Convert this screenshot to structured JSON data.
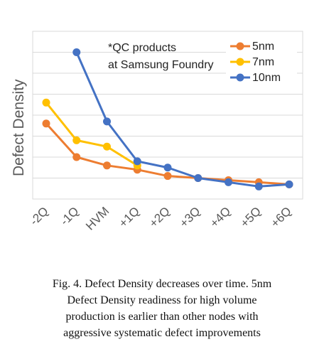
{
  "chart_data": {
    "type": "line",
    "ylabel": "Defect Density",
    "xlabel": "",
    "categories": [
      "-2Q",
      "-1Q",
      "HVM",
      "+1Q",
      "+2Q",
      "+3Q",
      "+4Q",
      "+5Q",
      "+6Q"
    ],
    "ylim": [
      0,
      8
    ],
    "grid": true,
    "legend_position": "top-right",
    "annotation_lines": [
      "*QC products",
      "at Samsung Foundry"
    ],
    "series": [
      {
        "name": "5nm",
        "color": "#ED7D31",
        "values": [
          3.6,
          2.0,
          1.6,
          1.4,
          1.1,
          1.0,
          0.9,
          0.8,
          0.7
        ]
      },
      {
        "name": "7nm",
        "color": "#FFC000",
        "values": [
          4.6,
          2.8,
          2.5,
          1.6,
          null,
          null,
          null,
          null,
          null
        ]
      },
      {
        "name": "10nm",
        "color": "#4472C4",
        "values": [
          null,
          7.0,
          3.7,
          1.8,
          1.5,
          1.0,
          0.8,
          0.6,
          0.7
        ]
      }
    ]
  },
  "caption": {
    "lines": [
      "Fig. 4. Defect Density decreases over time. 5nm",
      "Defect Density readiness for high volume",
      "production is earlier than other nodes with",
      "aggressive systematic defect improvements"
    ]
  }
}
